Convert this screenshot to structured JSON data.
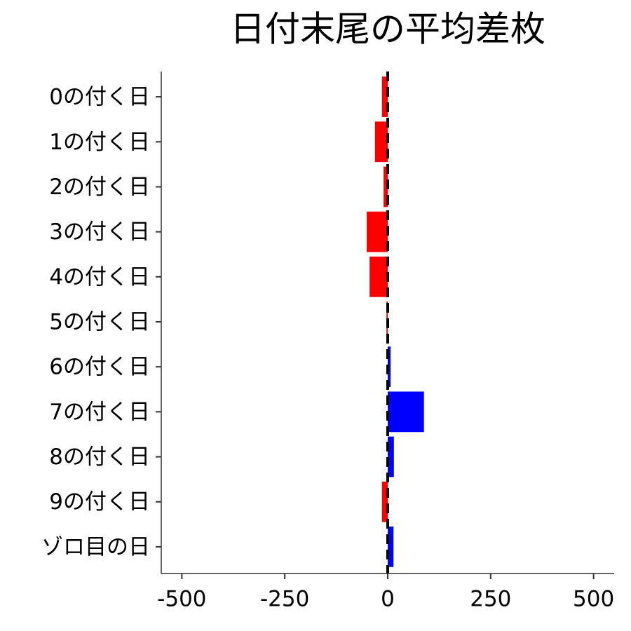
{
  "chart_data": {
    "type": "barh",
    "title": "日付末尾の平均差枚",
    "categories": [
      "0の付く日",
      "1の付く日",
      "2の付く日",
      "3の付く日",
      "4の付く日",
      "5の付く日",
      "6の付く日",
      "7の付く日",
      "8の付く日",
      "9の付く日",
      "ゾロ目の日"
    ],
    "values": [
      -14,
      -31,
      -10,
      -51,
      -44,
      -3,
      7,
      88,
      15,
      -14,
      14
    ],
    "colors": {
      "negative": "#ff0000",
      "positive": "#0000ff"
    },
    "xlim": [
      -550,
      550
    ],
    "xticks": [
      -500,
      -250,
      0,
      250,
      500
    ],
    "reference_line": {
      "x": 0,
      "style": "dashed",
      "color": "#000000"
    },
    "grid": false
  }
}
